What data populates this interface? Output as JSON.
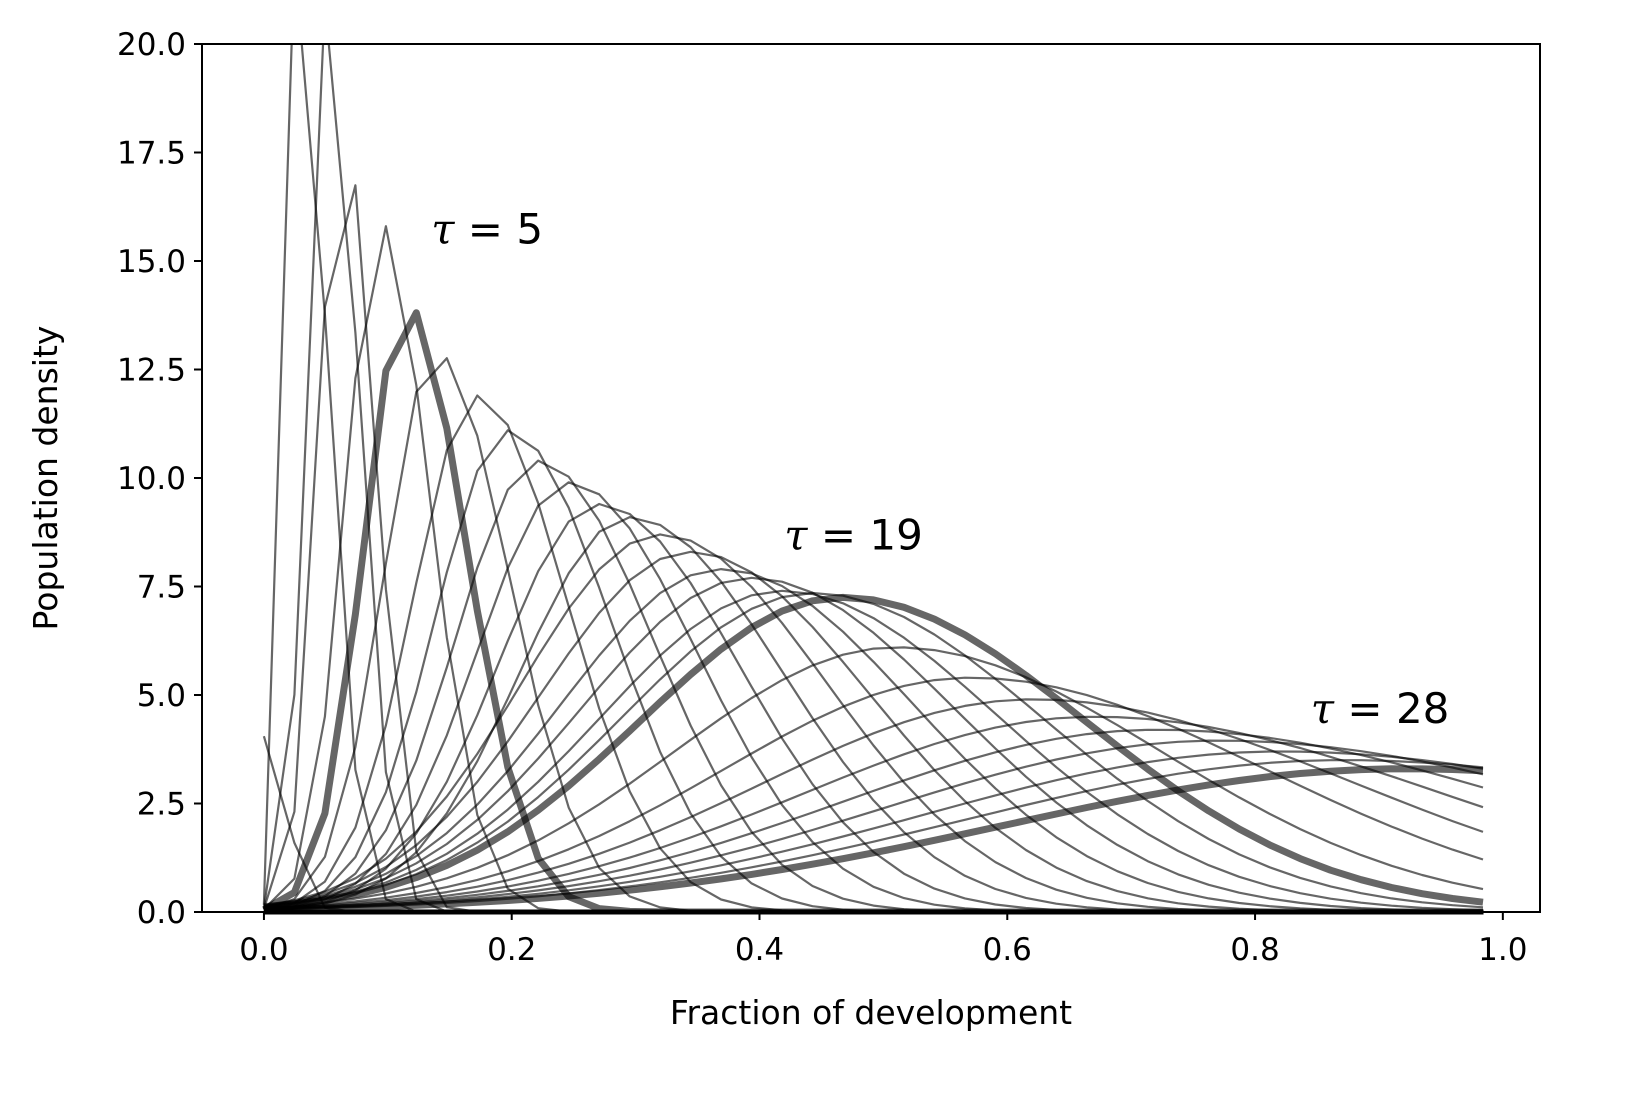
{
  "chart_data": {
    "type": "line",
    "title": "",
    "xlabel": "Fraction of development",
    "ylabel": "Population density",
    "xlim": [
      -0.05,
      1.03
    ],
    "ylim": [
      0,
      20
    ],
    "x_ticks": [
      "0.0",
      "0.2",
      "0.4",
      "0.6",
      "0.8",
      "1.0"
    ],
    "y_ticks": [
      "0.0",
      "2.5",
      "5.0",
      "7.5",
      "10.0",
      "12.5",
      "15.0",
      "17.5",
      "20.0"
    ],
    "grid": false,
    "legend": "none",
    "line_color": "#000000",
    "line_opacity": 0.6,
    "x_range": [
      0,
      0.9844
    ],
    "x_step": 0.0246,
    "series_count": 29,
    "series_peaks": [
      {
        "tau": 0,
        "x": 0.0,
        "y": 4.05
      },
      {
        "tau": 1,
        "x": 0.025,
        "y": 22.0
      },
      {
        "tau": 2,
        "x": 0.05,
        "y": 21.0
      },
      {
        "tau": 3,
        "x": 0.063,
        "y": 18.2
      },
      {
        "tau": 4,
        "x": 0.094,
        "y": 15.9
      },
      {
        "tau": 5,
        "x": 0.115,
        "y": 14.0
      },
      {
        "tau": 6,
        "x": 0.139,
        "y": 12.9
      },
      {
        "tau": 7,
        "x": 0.172,
        "y": 11.9
      },
      {
        "tau": 8,
        "x": 0.197,
        "y": 11.1
      },
      {
        "tau": 9,
        "x": 0.221,
        "y": 10.4
      },
      {
        "tau": 10,
        "x": 0.246,
        "y": 9.9
      },
      {
        "tau": 11,
        "x": 0.27,
        "y": 9.4
      },
      {
        "tau": 12,
        "x": 0.295,
        "y": 9.1
      },
      {
        "tau": 13,
        "x": 0.32,
        "y": 8.7
      },
      {
        "tau": 14,
        "x": 0.344,
        "y": 8.3
      },
      {
        "tau": 15,
        "x": 0.369,
        "y": 7.9
      },
      {
        "tau": 16,
        "x": 0.393,
        "y": 7.7
      },
      {
        "tau": 17,
        "x": 0.418,
        "y": 7.4
      },
      {
        "tau": 18,
        "x": 0.443,
        "y": 7.35
      },
      {
        "tau": 19,
        "x": 0.467,
        "y": 7.25
      },
      {
        "tau": 20,
        "x": 0.51,
        "y": 6.1
      },
      {
        "tau": 21,
        "x": 0.57,
        "y": 5.4
      },
      {
        "tau": 22,
        "x": 0.62,
        "y": 4.9
      },
      {
        "tau": 23,
        "x": 0.67,
        "y": 4.5
      },
      {
        "tau": 24,
        "x": 0.72,
        "y": 4.2
      },
      {
        "tau": 25,
        "x": 0.77,
        "y": 3.95
      },
      {
        "tau": 26,
        "x": 0.82,
        "y": 3.7
      },
      {
        "tau": 27,
        "x": 0.87,
        "y": 3.5
      },
      {
        "tau": 28,
        "x": 0.92,
        "y": 3.3
      }
    ],
    "highlighted": [
      5,
      19,
      28
    ],
    "annotations": [
      {
        "tau_symbol": "τ",
        "equals": " = ",
        "value": "5",
        "x": 0.135,
        "y": 15.4
      },
      {
        "tau_symbol": "τ",
        "equals": " = ",
        "value": "19",
        "x": 0.42,
        "y": 8.35
      },
      {
        "tau_symbol": "τ",
        "equals": " = ",
        "value": "28",
        "x": 0.845,
        "y": 4.35
      }
    ]
  }
}
